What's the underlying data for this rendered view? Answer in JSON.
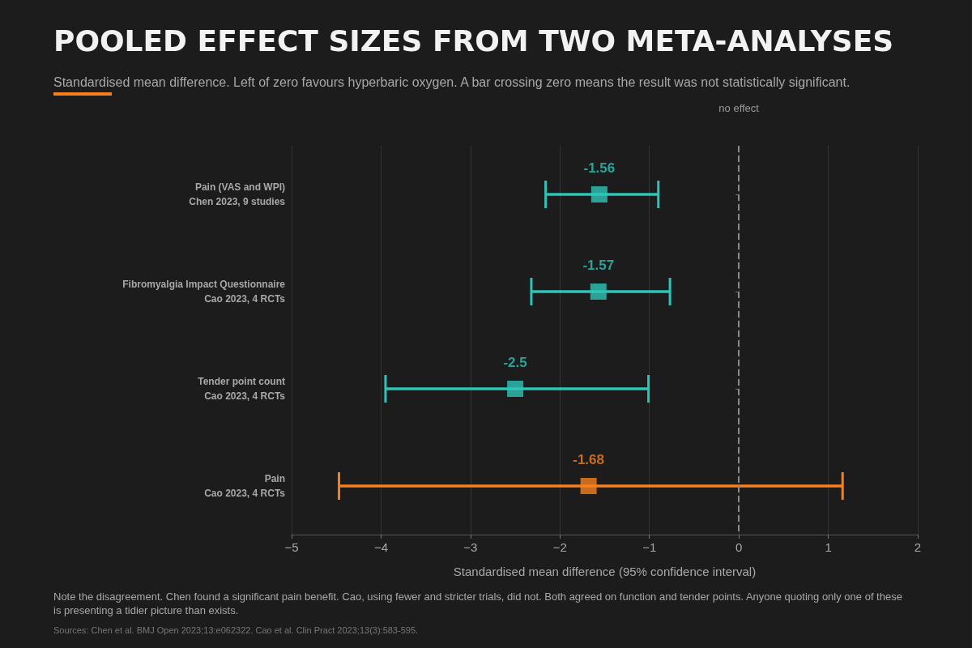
{
  "chart_data": {
    "type": "scatter",
    "orientation": "horizontal",
    "title": "POOLED EFFECT SIZES FROM TWO META-ANALYSES",
    "subtitle": "Standardised mean difference. Left of zero favours hyperbaric oxygen. A bar crossing zero means the result was not statistically significant.",
    "xlabel": "Standardised mean difference (95% confidence interval)",
    "categories": [
      "Pain (VAS and WPI)\nChen 2023, 9 studies",
      "Fibromyalgia Impact Questionnaire\nCao 2023, 4 RCTs",
      "Tender point count\nCao 2023, 4 RCTs",
      "Pain\nCao 2023, 4 RCTs"
    ],
    "values": [
      -1.56,
      -1.57,
      -2.5,
      -1.68
    ],
    "errors": [
      [
        -2.16,
        -0.9
      ],
      [
        -2.32,
        -0.77
      ],
      [
        -3.95,
        -1.01
      ],
      [
        -4.47,
        1.16
      ]
    ],
    "colors": [
      "#2ec4b6",
      "#2ec4b6",
      "#2ec4b6",
      "#f77f1e"
    ],
    "marker": "square",
    "data_labels": true,
    "grid": "x",
    "xlim": [
      -5,
      2
    ],
    "xticks": [
      {
        "value": -5,
        "label": "−5"
      },
      {
        "value": -4,
        "label": "−4"
      },
      {
        "value": -3,
        "label": "−3"
      },
      {
        "value": -2,
        "label": "−2"
      },
      {
        "value": -1,
        "label": "−1"
      },
      0,
      1,
      2
    ],
    "ref_lines": [
      {
        "axis": "x",
        "value": 0,
        "label": "no effect",
        "color": "#8a8a8a",
        "line_style": "dashed"
      }
    ],
    "annotations": [
      "Note the disagreement. Chen found a significant pain benefit. Cao, using fewer and stricter trials, did not. Both agreed on function and tender points. Anyone quoting only one of these is presenting a tidier picture than exists.",
      "Sources: Chen et al. BMJ Open 2023;13:e062322. Cao et al. Clin Pract 2023;13(3):583-595."
    ]
  }
}
